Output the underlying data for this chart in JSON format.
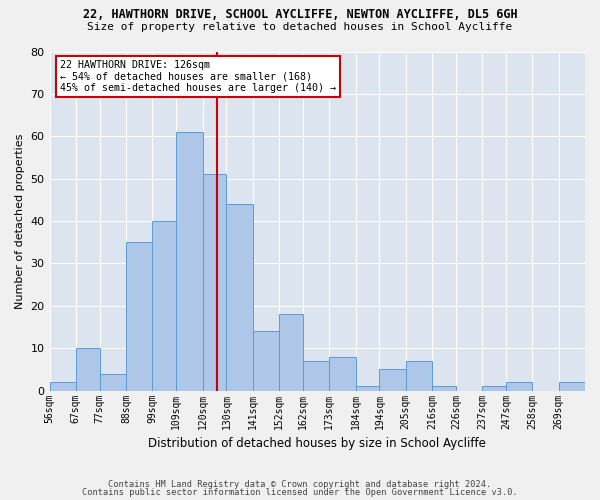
{
  "title1": "22, HAWTHORN DRIVE, SCHOOL AYCLIFFE, NEWTON AYCLIFFE, DL5 6GH",
  "title2": "Size of property relative to detached houses in School Aycliffe",
  "xlabel": "Distribution of detached houses by size in School Aycliffe",
  "ylabel": "Number of detached properties",
  "bin_labels": [
    "56sqm",
    "67sqm",
    "77sqm",
    "88sqm",
    "99sqm",
    "109sqm",
    "120sqm",
    "130sqm",
    "141sqm",
    "152sqm",
    "162sqm",
    "173sqm",
    "184sqm",
    "194sqm",
    "205sqm",
    "216sqm",
    "226sqm",
    "237sqm",
    "247sqm",
    "258sqm",
    "269sqm"
  ],
  "bin_edges": [
    56,
    67,
    77,
    88,
    99,
    109,
    120,
    130,
    141,
    152,
    162,
    173,
    184,
    194,
    205,
    216,
    226,
    237,
    247,
    258,
    269,
    280
  ],
  "values": [
    2,
    10,
    4,
    35,
    40,
    61,
    51,
    44,
    14,
    18,
    7,
    8,
    1,
    5,
    7,
    1,
    0,
    1,
    2,
    0,
    2
  ],
  "bar_color": "#aec6e8",
  "bar_edge_color": "#5b9bd5",
  "property_line_x": 126,
  "annotation_line1": "22 HAWTHORN DRIVE: 126sqm",
  "annotation_line2": "← 54% of detached houses are smaller (168)",
  "annotation_line3": "45% of semi-detached houses are larger (140) →",
  "annotation_box_color": "#ffffff",
  "annotation_box_edge": "#cc0000",
  "vline_color": "#cc0000",
  "bg_color": "#dce4f0",
  "grid_color": "#ffffff",
  "footer1": "Contains HM Land Registry data © Crown copyright and database right 2024.",
  "footer2": "Contains public sector information licensed under the Open Government Licence v3.0.",
  "fig_bg_color": "#f0f0f0",
  "ylim": [
    0,
    80
  ],
  "yticks": [
    0,
    10,
    20,
    30,
    40,
    50,
    60,
    70,
    80
  ]
}
